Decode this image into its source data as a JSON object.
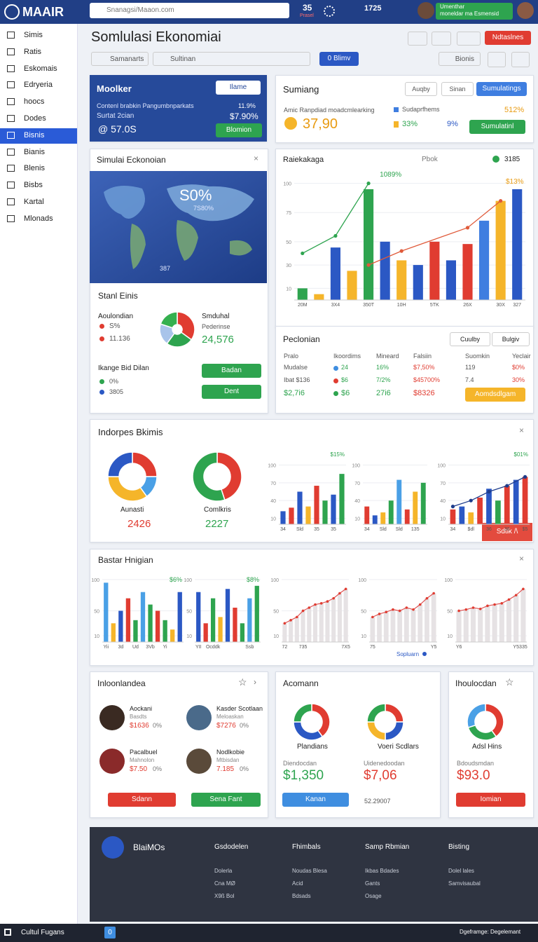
{
  "topbar": {
    "logo": "MAAIR",
    "search": "Snanagsi/Maaon.com",
    "count": "35",
    "count_label": "Prasel",
    "count2": "1725",
    "user_name": "Umenthar",
    "user_role": "moneldar ma Esmensid"
  },
  "sidebar": {
    "items": [
      "Simis",
      "Ratis",
      "Eskomais",
      "Edryeria",
      "hoocs",
      "Dodes",
      "Bisnis",
      "Bianis",
      "Blenis",
      "Bisbs",
      "Kartal",
      "Mlonads"
    ],
    "active": 6
  },
  "header": {
    "title": "Somlulasi Ekonomiai",
    "filter": "Samanarts",
    "search": "Sultinan",
    "toggle_count": "0",
    "toggle": "Blimv",
    "action": "Bionis",
    "cta": "Ndtaslnes"
  },
  "moolker": {
    "title": "Moolker",
    "select": "Ilame",
    "rows": [
      [
        "Contenl brabkin Pangumbnparkats",
        "11.9%"
      ],
      [
        "Surtat 2cian",
        "$7.90%"
      ]
    ],
    "value": "@ 57.0S",
    "button": "Blomion"
  },
  "sumiang": {
    "title": "Sumiang",
    "select": "Auqby",
    "tab": "Sinan",
    "button": "Sumulatings",
    "label": "Amic Ranpdiad moadcmlearking",
    "value": "37,90",
    "legend": [
      [
        "Sudaprfhems",
        "512%"
      ],
      [
        "33%",
        "9%"
      ]
    ],
    "button2": "Sumulatinl"
  },
  "map_card": {
    "title": "Simulai Eckonoian",
    "big": "S0%",
    "sub": "7S80%",
    "corner": "387",
    "section": "Stanl Einis",
    "left_title": "Aoulondian",
    "left_rows": [
      "S%",
      "11.136"
    ],
    "right_title": "Smduhal",
    "right_sub": "Pederinse",
    "right_value": "24,576",
    "bottom_title": "Ikange Bid Dilan",
    "bottom_rows": [
      "0%",
      "3805"
    ],
    "buttons": [
      "Badan",
      "Dent"
    ],
    "pie": {
      "type": "pie",
      "values": [
        35,
        25,
        20,
        20
      ],
      "colors": [
        "#e03c31",
        "#2ea44f",
        "#a9c4ea",
        "#35b04f"
      ]
    }
  },
  "main_chart": {
    "type": "bar",
    "title": "Raiekakaga",
    "legend": "Pbok",
    "badge": "3185",
    "annotations": [
      "1089%",
      "$13%"
    ],
    "categories": [
      "20M",
      null,
      "3X4",
      null,
      "350T",
      null,
      "10H",
      null,
      "5TK",
      null,
      "26X",
      null,
      "30X",
      "327"
    ],
    "values": [
      10,
      5,
      45,
      25,
      95,
      50,
      34,
      30,
      50,
      34,
      48,
      68,
      85,
      95
    ],
    "colors": [
      "#2ea44f",
      "#f5b52a",
      "#2b58c4",
      "#f5b52a",
      "#2ea44f",
      "#2b58c4",
      "#f5b52a",
      "#2b58c4",
      "#e03c31",
      "#2b58c4",
      "#e03c31",
      "#3f7ee0",
      "#f5b52a",
      "#2b58c4"
    ],
    "ylim": [
      0,
      110
    ],
    "yticks": [
      10,
      30,
      50,
      75,
      100
    ],
    "lines": [
      {
        "x": [
          0,
          2,
          4
        ],
        "values": [
          40,
          55,
          100
        ],
        "color": "#2ea44f"
      },
      {
        "x": [
          4,
          6,
          10,
          12
        ],
        "values": [
          30,
          42,
          62,
          85
        ],
        "color": "#e05a3a"
      }
    ]
  },
  "table": {
    "title": "Peclonian",
    "buttons": [
      "Cuulby",
      "Bulgiv"
    ],
    "columns": [
      "Pralo",
      "Ikoordims",
      "Mineard",
      "Falsiin",
      "Suomkin",
      "Yeclair"
    ],
    "rows": [
      [
        "Mudalse",
        "24",
        "16%",
        "$7,50%",
        "119",
        "$0%"
      ],
      [
        "Ibat $136",
        "$6",
        "7/2%",
        "$45700%",
        "7.4",
        "30%"
      ],
      [
        "$2,7i6",
        "$6",
        "27i6",
        "$8326"
      ]
    ],
    "button": "Aomdsdlgam"
  },
  "indorpes": {
    "title": "Indorpes Bkimis",
    "button": "Sdtlk /\\",
    "donuts": [
      {
        "type": "pie",
        "label": "Aunasti",
        "value": "2426",
        "values": [
          25,
          15,
          35,
          25
        ],
        "colors": [
          "#e03c31",
          "#4aa0e6",
          "#f5b52a",
          "#2b58c4"
        ]
      },
      {
        "type": "pie",
        "label": "Comlkris",
        "value": "2227",
        "values": [
          45,
          55
        ],
        "colors": [
          "#e03c31",
          "#2ea44f"
        ]
      }
    ],
    "charts": [
      {
        "type": "bar",
        "categories": [
          "34",
          null,
          "Sld",
          null,
          "35",
          null,
          "35",
          null
        ],
        "values": [
          22,
          28,
          55,
          30,
          65,
          40,
          50,
          85
        ],
        "colors": [
          "#2b58c4",
          "#e03c31",
          "#2b58c4",
          "#f5b52a",
          "#e03c31",
          "#2ea44f",
          "#2b58c4",
          "#2ea44f"
        ],
        "ylim": [
          0,
          110
        ],
        "yticks": [
          10,
          40,
          70,
          100
        ],
        "annotation": "$15%"
      },
      {
        "type": "bar",
        "categories": [
          "34",
          null,
          "Sld",
          null,
          "Sld",
          null,
          "135",
          null
        ],
        "values": [
          30,
          15,
          20,
          40,
          75,
          25,
          55,
          70
        ],
        "colors": [
          "#e03c31",
          "#2b58c4",
          "#f5b52a",
          "#2ea44f",
          "#4aa0e6",
          "#e03c31",
          "#f5b52a",
          "#2ea44f"
        ],
        "ylim": [
          0,
          110
        ],
        "yticks": [
          10,
          40,
          70,
          100
        ]
      },
      {
        "type": "bar",
        "categories": [
          "34",
          null,
          "$dl",
          null,
          "36",
          null,
          "36",
          null,
          "$5"
        ],
        "values": [
          25,
          30,
          20,
          45,
          60,
          40,
          65,
          75,
          80
        ],
        "colors": [
          "#e03c31",
          "#2b58c4",
          "#f5b52a",
          "#e03c31",
          "#2b58c4",
          "#2ea44f",
          "#e03c31",
          "#2b58c4",
          "#e03c31"
        ],
        "ylim": [
          0,
          110
        ],
        "yticks": [
          10,
          40,
          70,
          100
        ],
        "annotation": "$01%",
        "lines": [
          {
            "x": [
              0,
              2,
              4,
              6,
              8
            ],
            "values": [
              30,
              40,
              55,
              65,
              80
            ],
            "color": "#1e3c8c"
          }
        ]
      }
    ]
  },
  "bastar": {
    "title": "Bastar Hnigian",
    "legend": "Sopluarn",
    "charts": [
      {
        "type": "bar",
        "categories": [
          "Yii",
          null,
          "3d",
          null,
          "Ud",
          null,
          "3Vb",
          null,
          "Yi",
          null,
          null
        ],
        "values": [
          95,
          30,
          50,
          70,
          35,
          80,
          60,
          50,
          35,
          20,
          80
        ],
        "colors": [
          "#4aa0e6",
          "#f5b52a",
          "#2b58c4",
          "#e03c31",
          "#2ea44f",
          "#4aa0e6",
          "#2ea44f",
          "#e03c31",
          "#2ea44f",
          "#f5b52a",
          "#2b58c4"
        ],
        "ylim": [
          0,
          110
        ],
        "yticks": [
          10,
          50,
          100
        ],
        "annotation": "$6%"
      },
      {
        "type": "bar",
        "categories": [
          "YII",
          null,
          "Ocddk",
          null,
          null,
          null,
          null,
          "Ssb",
          null
        ],
        "values": [
          80,
          30,
          70,
          40,
          85,
          55,
          30,
          70,
          90
        ],
        "colors": [
          "#2b58c4",
          "#e03c31",
          "#2ea44f",
          "#f5b52a",
          "#2b58c4",
          "#e03c31",
          "#2ea44f",
          "#4aa0e6",
          "#2ea44f"
        ],
        "ylim": [
          0,
          110
        ],
        "yticks": [
          10,
          50,
          100
        ],
        "annotation": "$8%"
      },
      {
        "type": "area",
        "categories": [
          "72",
          null,
          null,
          "735",
          null,
          null,
          null,
          null,
          null,
          null,
          "7X5"
        ],
        "values": [
          30,
          35,
          40,
          50,
          55,
          60,
          62,
          65,
          70,
          78,
          85
        ],
        "ylim": [
          0,
          110
        ],
        "yticks": [
          10,
          50,
          100
        ]
      },
      {
        "type": "area",
        "categories": [
          "75",
          null,
          null,
          null,
          null,
          null,
          null,
          null,
          null,
          "Y5"
        ],
        "values": [
          40,
          45,
          48,
          52,
          50,
          55,
          52,
          60,
          70,
          78
        ],
        "ylim": [
          0,
          110
        ],
        "yticks": [
          10,
          50,
          100
        ]
      },
      {
        "type": "area",
        "categories": [
          "Y6",
          null,
          null,
          null,
          null,
          null,
          null,
          null,
          "Y5",
          "335"
        ],
        "values": [
          50,
          52,
          55,
          53,
          58,
          60,
          62,
          68,
          75,
          85
        ],
        "ylim": [
          0,
          110
        ],
        "yticks": [
          10,
          50,
          100
        ]
      }
    ]
  },
  "people": {
    "title": "Inloonlandea",
    "items": [
      {
        "name": "Aockani",
        "sub": "Basdts",
        "value": "$1636",
        "pct": "0%"
      },
      {
        "name": "Kasder Scotlaan",
        "sub": "Meloaskan",
        "value": "$7276",
        "pct": "0%"
      },
      {
        "name": "Pacalbuel",
        "sub": "Mahnolon",
        "value": "$7.50",
        "pct": "0%"
      },
      {
        "name": "Nodlkobie",
        "sub": "Mtbisdan",
        "value": "7.185",
        "pct": "0%"
      }
    ],
    "buttons": [
      "Sdann",
      "Sena Fant"
    ]
  },
  "acomann": {
    "title": "Acomann",
    "items": [
      {
        "label": "Plandians",
        "sub": "Diendocdan",
        "value": "$1,350",
        "type": "pie",
        "values": [
          40,
          35,
          25
        ],
        "colors": [
          "#e03c31",
          "#2b58c4",
          "#2ea44f"
        ]
      },
      {
        "label": "Voeri Scdlars",
        "sub": "Uidenedoodan",
        "value": "$7,06",
        "type": "pie",
        "values": [
          25,
          25,
          25,
          25
        ],
        "colors": [
          "#e03c31",
          "#2b58c4",
          "#f5b52a",
          "#2ea44f"
        ]
      }
    ],
    "button": "Kanan",
    "note": "52.29007"
  },
  "ihoul": {
    "title": "Ihoulocdan",
    "label": "Adsl Hins",
    "sub": "Bdoudsmdan",
    "value": "$93.0",
    "button": "Iomian",
    "type": "pie",
    "values": [
      40,
      30,
      30
    ],
    "colors": [
      "#e03c31",
      "#2ea44f",
      "#4aa0e6"
    ]
  },
  "footer": {
    "brand": "BlaiMOs",
    "columns": [
      {
        "title": "Gsdodelen",
        "links": [
          "Dolerla",
          "Cna MØ",
          "X9ß Bol"
        ]
      },
      {
        "title": "Fhimbals",
        "links": [
          "Noudas Blesa",
          "Acid",
          "Bdsads"
        ]
      },
      {
        "title": "Samp Rbmian",
        "links": [
          "Ikbas Bdades",
          "Gants",
          "Osage"
        ]
      },
      {
        "title": "Bisting",
        "links": [
          "Dolel lales",
          "Samvisaubal"
        ]
      }
    ]
  },
  "statusbar": {
    "left": "Cultul Fugans",
    "badge": "0",
    "right": "Dgeframge: Degelemant"
  }
}
